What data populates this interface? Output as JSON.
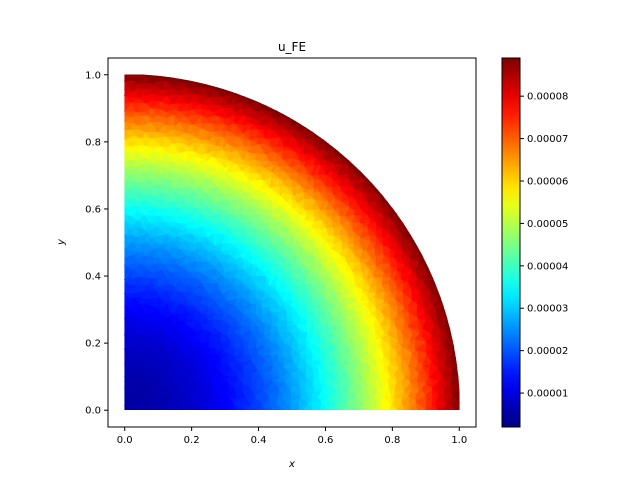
{
  "chart_data": {
    "type": "heatmap",
    "title": "u_FE",
    "xlabel": "x",
    "ylabel": "y",
    "xlim": [
      -0.05,
      1.05
    ],
    "ylim": [
      -0.05,
      1.05
    ],
    "x_ticks": [
      "0.0",
      "0.2",
      "0.4",
      "0.6",
      "0.8",
      "1.0"
    ],
    "y_ticks": [
      "0.0",
      "0.2",
      "0.4",
      "0.6",
      "0.8",
      "1.0"
    ],
    "domain": "quarter disk, radius 1, centered at origin",
    "field": "u = c0 + c1 * r^2, r = sqrt(x^2 + y^2)",
    "value_min": 2e-06,
    "value_max": 8.9e-05,
    "colormap": "jet",
    "grid": false,
    "colorbar": {
      "position": "right",
      "ticks": [
        "0.00001",
        "0.00002",
        "0.00003",
        "0.00004",
        "0.00005",
        "0.00006",
        "0.00007",
        "0.00008"
      ],
      "tick_values": [
        1e-05,
        2e-05,
        3e-05,
        4e-05,
        5e-05,
        6e-05,
        7e-05,
        8e-05
      ]
    }
  }
}
